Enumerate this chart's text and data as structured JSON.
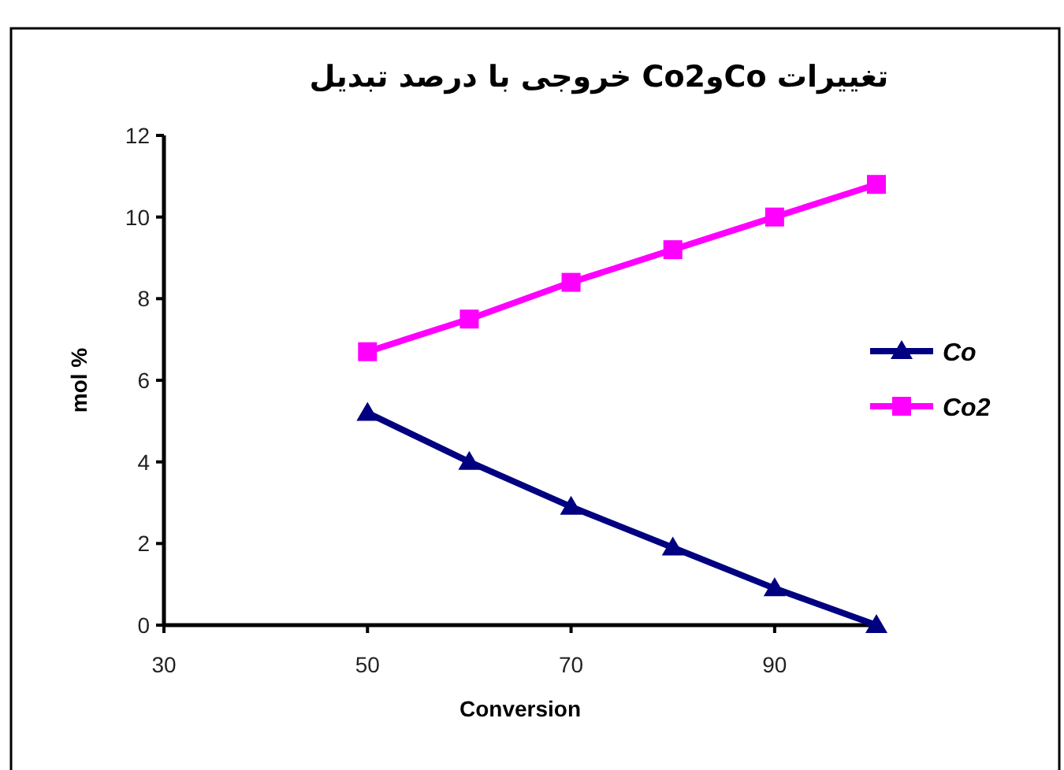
{
  "chart_data": {
    "type": "line",
    "title": "تغییرات CoوCo2 خروجی با درصد تبدیل",
    "xlabel": "Conversion",
    "ylabel": "mol %",
    "x": [
      50,
      60,
      70,
      80,
      90,
      100
    ],
    "series": [
      {
        "name": "Co",
        "color": "#000080",
        "marker": "triangle",
        "values": [
          5.2,
          4.0,
          2.9,
          1.9,
          0.9,
          0
        ]
      },
      {
        "name": "Co2",
        "color": "#ff00ff",
        "marker": "square",
        "values": [
          6.7,
          7.5,
          8.4,
          9.2,
          10.0,
          10.8
        ]
      }
    ],
    "xlim": [
      30,
      100
    ],
    "xticks": [
      30,
      50,
      70,
      90
    ],
    "ylim": [
      0,
      12
    ],
    "yticks": [
      0,
      2,
      4,
      6,
      8,
      10,
      12
    ],
    "grid": false,
    "legend": "right"
  }
}
